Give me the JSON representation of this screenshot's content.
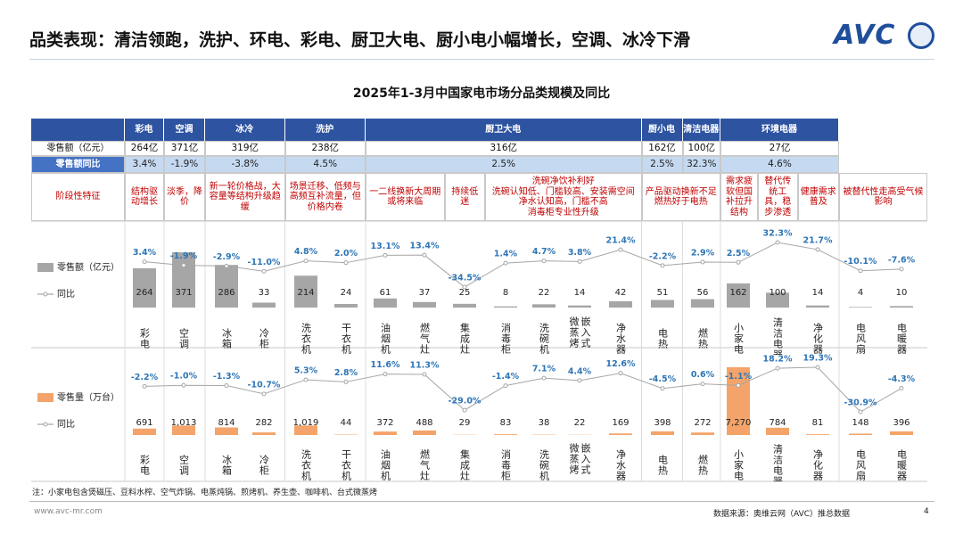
{
  "header": {
    "title": "品类表现：清洁领跑，洗护、环电、彩电、厨卫大电、厨小电小幅增长，空调、冰冷下滑",
    "logo": "AVC"
  },
  "subtitle": "2025年1-3月中国家电市场分品类规模及同比",
  "table": {
    "groups": [
      "彩电",
      "空调",
      "冰冷",
      "洗护",
      "厨卫大电",
      "厨小电",
      "清洁电器",
      "环境电器"
    ],
    "rows": [
      {
        "label": "零售额（亿元）",
        "cells": [
          "264亿",
          "371亿",
          "319亿",
          "238亿",
          "316亿",
          "162亿",
          "100亿",
          "27亿"
        ]
      },
      {
        "label": "零售额同比",
        "cells": [
          "3.4%",
          "-1.9%",
          "-3.8%",
          "4.5%",
          "2.5%",
          "2.5%",
          "32.3%",
          "4.6%"
        ]
      }
    ],
    "features": {
      "label": "阶段性特征",
      "cells": [
        "结构驱动增长",
        "淡季，降价",
        "新一轮价格战，大容量等结构升级趋缓",
        "场景迁移、低频与高频互补流量，但价格内卷",
        "一二线换新大周期或将来临",
        "持续低迷",
        [
          "洗碗净饮补利好",
          "洗碗认知低、门槛较高、安装需空间",
          "净水认知高，门槛不高",
          "消毒柜专业性升级"
        ],
        "产品驱动换新不足燃热好于电热",
        "需求疲软但国补拉升结构",
        "替代传统工具，稳步渗透",
        "健康需求普及",
        "被替代性走高受气候影响"
      ]
    }
  },
  "chart_data": [
    {
      "type": "combo",
      "categories": [
        "彩电",
        "空调",
        "冰箱",
        "冷柜",
        "洗衣机",
        "干衣机",
        "油烟机",
        "燃气灶",
        "集成灶",
        "消毒柜",
        "洗碗机",
        "微蒸烤嵌入式",
        "净水器",
        "电热",
        "燃热",
        "小家电",
        "清洁电器",
        "净化器",
        "电风扇",
        "电暖器"
      ],
      "series": [
        {
          "name": "零售额（亿元）",
          "type": "bar",
          "color": "#a6a6a6",
          "values": [
            264,
            371,
            286,
            33,
            214,
            24,
            61,
            37,
            25,
            8,
            22,
            14,
            42,
            51,
            56,
            162,
            100,
            14,
            4,
            10
          ]
        },
        {
          "name": "同比",
          "type": "line",
          "axis": "y2",
          "color": "#a6a6a6",
          "label_color": "#2e75b6",
          "values": [
            3.4,
            -1.9,
            -2.9,
            -11.0,
            4.8,
            2.0,
            13.1,
            13.4,
            -34.5,
            1.4,
            4.7,
            3.8,
            21.4,
            -2.2,
            2.9,
            2.5,
            32.3,
            21.7,
            -10.1,
            -7.6
          ],
          "value_labels": [
            "3.4%",
            "-1.9%",
            "-2.9%",
            "-11.0%",
            "4.8%",
            "2.0%",
            "13.1%",
            "13.4%",
            "-34.5%",
            "1.4%",
            "4.7%",
            "3.8%",
            "21.4%",
            "-2.2%",
            "2.9%",
            "2.5%",
            "32.3%",
            "21.7%",
            "-10.1%",
            "-7.6%"
          ]
        }
      ]
    },
    {
      "type": "combo",
      "categories": [
        "彩电",
        "空调",
        "冰箱",
        "冷柜",
        "洗衣机",
        "干衣机",
        "油烟机",
        "燃气灶",
        "集成灶",
        "消毒柜",
        "洗碗机",
        "微蒸烤嵌入式",
        "净水器",
        "电热",
        "燃热",
        "小家电",
        "清洁电器",
        "净化器",
        "电风扇",
        "电暖器"
      ],
      "series": [
        {
          "name": "零售量（万台）",
          "type": "bar",
          "color": "#f4a46a",
          "values": [
            691,
            1013,
            814,
            282,
            1019,
            44,
            372,
            488,
            29,
            83,
            38,
            22,
            169,
            398,
            272,
            7270,
            784,
            81,
            148,
            396
          ],
          "value_labels": [
            "691",
            "1,013",
            "814",
            "282",
            "1,019",
            "44",
            "372",
            "488",
            "29",
            "83",
            "38",
            "22",
            "169",
            "398",
            "272",
            "7,270",
            "784",
            "81",
            "148",
            "396"
          ]
        },
        {
          "name": "同比",
          "type": "line",
          "axis": "y2",
          "color": "#a6a6a6",
          "label_color": "#2e75b6",
          "values": [
            -2.2,
            -1.0,
            -1.3,
            -10.7,
            5.3,
            2.8,
            11.6,
            11.3,
            -29.0,
            -1.4,
            7.1,
            4.4,
            12.6,
            -4.5,
            0.6,
            -1.1,
            18.2,
            19.3,
            -30.9,
            -4.3
          ],
          "value_labels": [
            "-2.2%",
            "-1.0%",
            "-1.3%",
            "-10.7%",
            "5.3%",
            "2.8%",
            "11.6%",
            "11.3%",
            "-29.0%",
            "-1.4%",
            "7.1%",
            "4.4%",
            "12.6%",
            "-4.5%",
            "0.6%",
            "-1.1%",
            "18.2%",
            "19.3%",
            "-30.9%",
            "-4.3%"
          ]
        }
      ]
    }
  ],
  "footnote": "注：小家电包含煲磁压、豆料水榨、空气炸锅、电蒸炖锅、煎烤机、养生壶、咖啡机、台式微蒸烤",
  "url": "www.avc-mr.com",
  "source": "数据来源：奥维云网（AVC）推总数据",
  "page": "4"
}
